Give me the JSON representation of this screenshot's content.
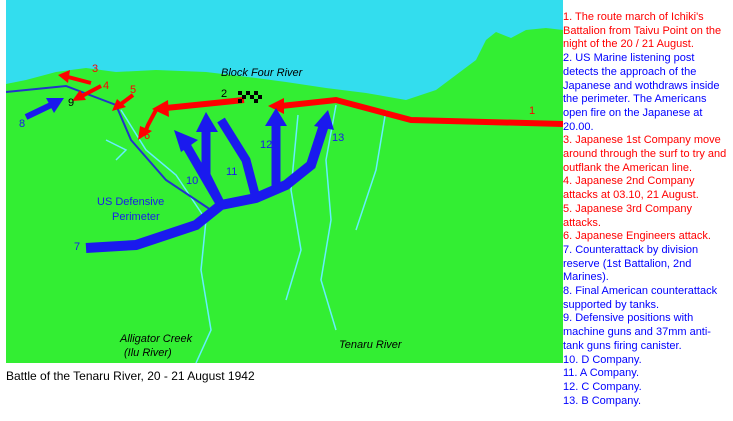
{
  "map": {
    "block_four_river": "Block Four River",
    "perimeter_label": [
      "US Defensive",
      "Perimeter"
    ],
    "alligator_creek": [
      "Alligator Creek",
      "(Ilu River)"
    ],
    "tenaru_river": "Tenaru River",
    "numbers": [
      "1",
      "2",
      "3",
      "4",
      "5",
      "6",
      "7",
      "8",
      "9",
      "10",
      "11",
      "12",
      "13"
    ]
  },
  "caption": "Battle of the Tenaru River, 20 - 21 August 1942",
  "legend": [
    {
      "text": "1. The route march of Ichiki's Battalion from Taivu Point on the night of the 20 / 21 August.",
      "color": "#ff0000"
    },
    {
      "text": "2. US Marine listening post detects the approach of the Japanese and wothdraws inside the perimeter. The Americans open fire on the Japanese at 20.00.",
      "color": "#0000ff"
    },
    {
      "text": "3. Japanese 1st Company move around through the surf to try and outflank the American line.",
      "color": "#ff0000"
    },
    {
      "text": "4. Japanese 2nd Company attacks at 03.10, 21 August.",
      "color": "#ff0000"
    },
    {
      "text": "5. Japanese 3rd Company attacks.",
      "color": "#ff0000"
    },
    {
      "text": "6. Japanese Engineers attack.",
      "color": "#ff0000"
    },
    {
      "text": "7. Counterattack by division reserve (1st Battalion, 2nd Marines).",
      "color": "#0000ff"
    },
    {
      "text": "8. Final American counterattack supported by tanks.",
      "color": "#0000ff"
    },
    {
      "text": "9. Defensive positions with machine guns and 37mm anti-tank guns firing canister.",
      "color": "#0000ff"
    },
    {
      "text": "10. D Company.",
      "color": "#0000ff"
    },
    {
      "text": "11. A Company.",
      "color": "#0000ff"
    },
    {
      "text": "12. C Company.",
      "color": "#0000ff"
    },
    {
      "text": "13. B Company.",
      "color": "#0000ff"
    }
  ]
}
